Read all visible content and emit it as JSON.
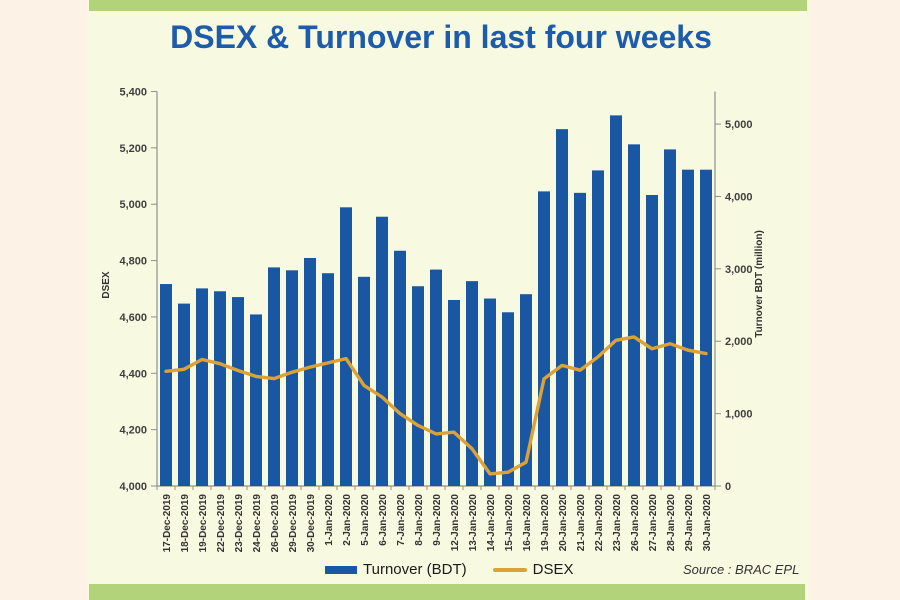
{
  "page": {
    "colors": {
      "background": "#fcf3e6",
      "card": "#f8f9e1",
      "band": "#b3d37b",
      "title": "#1d5cac",
      "bar": "#1a57a3",
      "line": "#dda235",
      "axis": "#909090",
      "tick_text": "#3f3f3f"
    }
  },
  "chart_data": {
    "type": "combo-bar-line",
    "title": "DSEX & Turnover in last four weeks",
    "categories": [
      "17-Dec-2019",
      "18-Dec-2019",
      "19-Dec-2019",
      "22-Dec-2019",
      "23-Dec-2019",
      "24-Dec-2019",
      "26-Dec-2019",
      "29-Dec-2019",
      "30-Dec-2019",
      "1-Jan-2020",
      "2-Jan-2020",
      "5-Jan-2020",
      "6-Jan-2020",
      "7-Jan-2020",
      "8-Jan-2020",
      "9-Jan-2020",
      "12-Jan-2020",
      "13-Jan-2020",
      "14-Jan-2020",
      "15-Jan-2020",
      "16-Jan-2020",
      "19-Jan-2020",
      "20-Jan-2020",
      "21-Jan-2020",
      "22-Jan-2020",
      "23-Jan-2020",
      "26-Jan-2020",
      "27-Jan-2020",
      "28-Jan-2020",
      "29-Jan-2020",
      "30-Jan-2020"
    ],
    "series": [
      {
        "name": "Turnover (BDT)",
        "type": "bar",
        "axis": "right",
        "values": [
          2790,
          2520,
          2730,
          2690,
          2610,
          2370,
          3020,
          2980,
          3150,
          2940,
          3850,
          2890,
          3720,
          3250,
          2760,
          2990,
          2570,
          2830,
          2590,
          2400,
          2650,
          4070,
          4930,
          4050,
          4360,
          5120,
          4720,
          4020,
          4650,
          4370,
          4370
        ]
      },
      {
        "name": "DSEX",
        "type": "line",
        "axis": "left",
        "values": [
          4407,
          4414,
          4449,
          4434,
          4410,
          4389,
          4381,
          4404,
          4422,
          4437,
          4452,
          4357,
          4316,
          4257,
          4215,
          4185,
          4191,
          4132,
          4043,
          4049,
          4084,
          4380,
          4428,
          4411,
          4458,
          4517,
          4529,
          4487,
          4505,
          4482,
          4470
        ]
      }
    ],
    "left_axis": {
      "title": "DSEX",
      "min": 4000,
      "max": 5400,
      "tick_step": 200,
      "tick_labels": [
        "4,000",
        "4,200",
        "4,400",
        "4,600",
        "4,800",
        "5,000",
        "5,200",
        "5,400"
      ]
    },
    "right_axis": {
      "title": "Turnover  BDT (million)",
      "min": 0,
      "max": 5450,
      "tick_step": 1000,
      "tick_labels": [
        "0",
        "1,000",
        "2,000",
        "3,000",
        "4,000",
        "5,000"
      ]
    },
    "source": "Source : BRAC EPL"
  }
}
